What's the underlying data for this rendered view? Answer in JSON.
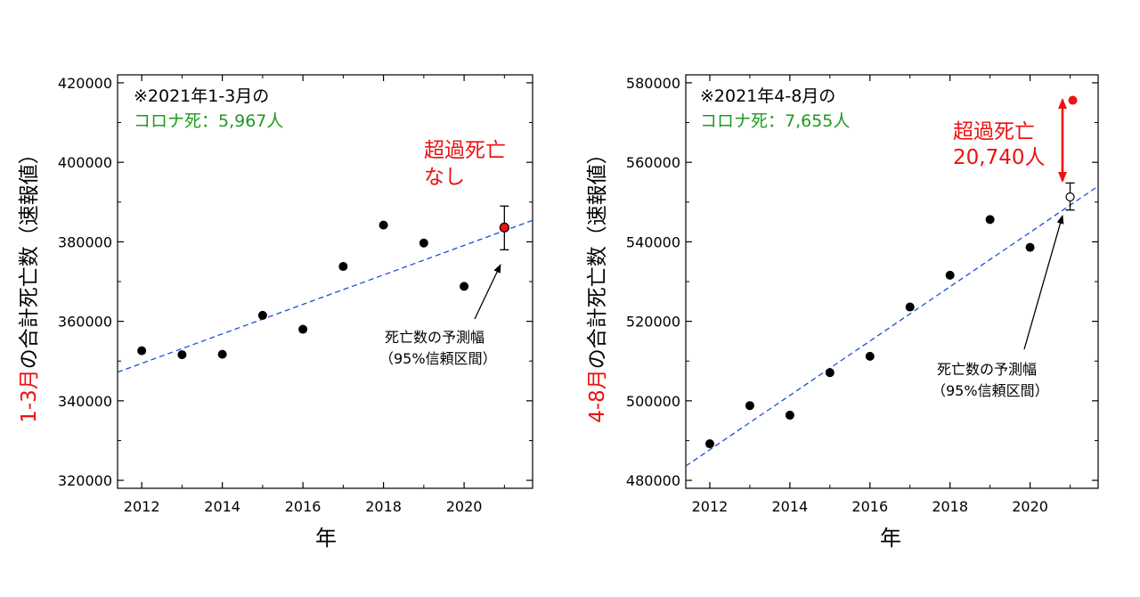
{
  "colors": {
    "axis": "#000000",
    "point": "#000000",
    "trend": "#1a4fd6",
    "highlight": "#ee1111",
    "note_green": "#1f9a1f"
  },
  "chart_data": [
    {
      "type": "scatter",
      "panel": "left",
      "ylabel_highlight": "1-3月",
      "ylabel_rest": "の合計死亡数（速報値）",
      "xlabel": "年",
      "xlim": [
        2011.4,
        2021.7
      ],
      "ylim": [
        318000,
        422000
      ],
      "xticks": [
        2012,
        2014,
        2016,
        2018,
        2020
      ],
      "yticks": [
        320000,
        340000,
        360000,
        380000,
        400000,
        420000
      ],
      "x": [
        2012,
        2013,
        2014,
        2015,
        2016,
        2017,
        2018,
        2019,
        2020
      ],
      "y": [
        352600,
        351600,
        351700,
        361500,
        358000,
        373800,
        384200,
        379700,
        368800
      ],
      "trend": {
        "x0": 2011.4,
        "y0": 347200,
        "x1": 2021.7,
        "y1": 385400
      },
      "prediction": {
        "x": 2021,
        "y": 383600,
        "lo": 378000,
        "hi": 389000
      },
      "actual_2021": {
        "x": 2021,
        "y": 383600
      },
      "note_line1": "※2021年1-3月の",
      "note_line2": "コロナ死：5,967人",
      "callout_line1": "超過死亡",
      "callout_line2": "なし",
      "range_label_line1": "死亡数の予測幅",
      "range_label_line2": "（95%信頼区間）"
    },
    {
      "type": "scatter",
      "panel": "right",
      "ylabel_highlight": "4-8月",
      "ylabel_rest": "の合計死亡数（速報値）",
      "xlabel": "年",
      "xlim": [
        2011.4,
        2021.7
      ],
      "ylim": [
        478000,
        582000
      ],
      "xticks": [
        2012,
        2014,
        2016,
        2018,
        2020
      ],
      "yticks": [
        480000,
        500000,
        520000,
        540000,
        560000,
        580000
      ],
      "x": [
        2012,
        2013,
        2014,
        2015,
        2016,
        2017,
        2018,
        2019,
        2020
      ],
      "y": [
        489200,
        498800,
        496400,
        507100,
        511200,
        523600,
        531600,
        545600,
        538600
      ],
      "trend": {
        "x0": 2011.4,
        "y0": 483600,
        "x1": 2021.7,
        "y1": 554000
      },
      "prediction": {
        "x": 2021,
        "y": 551300,
        "lo": 548000,
        "hi": 554800
      },
      "actual_2021": {
        "x": 2021,
        "y": 575600
      },
      "note_line1": "※2021年4-8月の",
      "note_line2": "コロナ死：7,655人",
      "callout_line1": "超過死亡",
      "callout_line2": "20,740人",
      "range_label_line1": "死亡数の予測幅",
      "range_label_line2": "（95%信頼区間）"
    }
  ]
}
